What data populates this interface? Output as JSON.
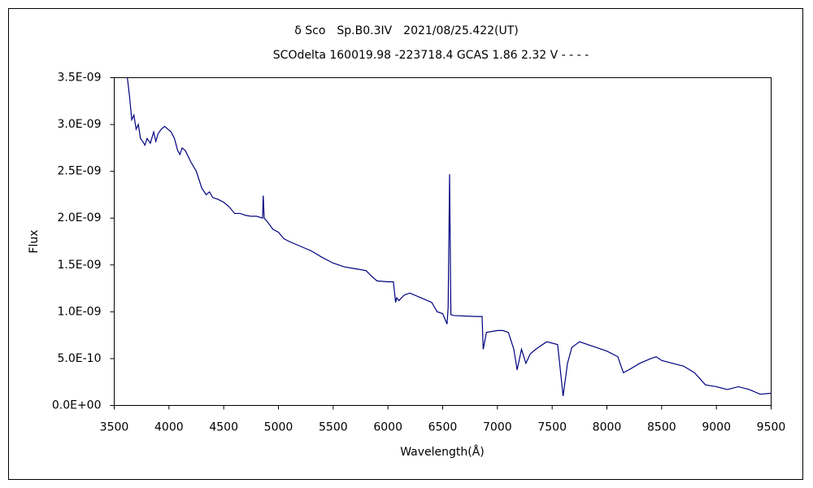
{
  "chart_data": {
    "type": "line",
    "title": "δ Sco　Sp.B0.3IV　2021/08/25.422(UT)",
    "subtitle": "SCOdelta 160019.98 -223718.4 GCAS 1.86 2.32 V - - - -",
    "x_label": "Wavelength(Å)",
    "y_label": "Flux",
    "xlim": [
      3500,
      9500
    ],
    "xticks": [
      3500,
      4000,
      4500,
      5000,
      5500,
      6000,
      6500,
      7000,
      7500,
      8000,
      8500,
      9000,
      9500
    ],
    "ylim": [
      0,
      3.5e-09
    ],
    "yticks": [
      {
        "value": 0,
        "label": "0.0E+00"
      },
      {
        "value": 5e-10,
        "label": "5.0E-10"
      },
      {
        "value": 1e-09,
        "label": "1.0E-09"
      },
      {
        "value": 1.5e-09,
        "label": "1.5E-09"
      },
      {
        "value": 2e-09,
        "label": "2.0E-09"
      },
      {
        "value": 2.5e-09,
        "label": "2.5E-09"
      },
      {
        "value": 3e-09,
        "label": "3.0E-09"
      },
      {
        "value": 3.5e-09,
        "label": "3.5E-09"
      }
    ],
    "grid": false,
    "series": [
      {
        "color": "#000080",
        "x": [
          3620,
          3640,
          3660,
          3680,
          3700,
          3720,
          3740,
          3760,
          3780,
          3800,
          3830,
          3860,
          3880,
          3900,
          3930,
          3960,
          3990,
          4020,
          4050,
          4080,
          4100,
          4120,
          4150,
          4200,
          4250,
          4300,
          4340,
          4370,
          4400,
          4450,
          4500,
          4550,
          4600,
          4650,
          4700,
          4750,
          4800,
          4855,
          4861,
          4870,
          4900,
          4950,
          5000,
          5050,
          5100,
          5200,
          5300,
          5400,
          5500,
          5600,
          5700,
          5800,
          5850,
          5900,
          6000,
          6050,
          6070,
          6080,
          6100,
          6150,
          6200,
          6300,
          6400,
          6450,
          6500,
          6540,
          6550,
          6563,
          6575,
          6600,
          6800,
          6860,
          6870,
          6900,
          7000,
          7050,
          7100,
          7150,
          7180,
          7220,
          7260,
          7300,
          7350,
          7450,
          7550,
          7600,
          7640,
          7680,
          7750,
          7900,
          8000,
          8100,
          8150,
          8200,
          8300,
          8400,
          8450,
          8500,
          8600,
          8700,
          8800,
          8900,
          9000,
          9100,
          9200,
          9300,
          9400,
          9500
        ],
        "values": [
          3.5e-09,
          3.3e-09,
          3.05e-09,
          3.1e-09,
          2.95e-09,
          3e-09,
          2.85e-09,
          2.82e-09,
          2.78e-09,
          2.85e-09,
          2.8e-09,
          2.92e-09,
          2.82e-09,
          2.9e-09,
          2.95e-09,
          2.98e-09,
          2.95e-09,
          2.92e-09,
          2.85e-09,
          2.72e-09,
          2.68e-09,
          2.75e-09,
          2.72e-09,
          2.6e-09,
          2.5e-09,
          2.32e-09,
          2.25e-09,
          2.28e-09,
          2.22e-09,
          2.2e-09,
          2.17e-09,
          2.12e-09,
          2.05e-09,
          2.05e-09,
          2.03e-09,
          2.02e-09,
          2.02e-09,
          2e-09,
          2.24e-09,
          2e-09,
          1.96e-09,
          1.88e-09,
          1.85e-09,
          1.78e-09,
          1.75e-09,
          1.7e-09,
          1.65e-09,
          1.58e-09,
          1.52e-09,
          1.48e-09,
          1.46e-09,
          1.44e-09,
          1.38e-09,
          1.33e-09,
          1.32e-09,
          1.32e-09,
          1.1e-09,
          1.15e-09,
          1.12e-09,
          1.18e-09,
          1.2e-09,
          1.15e-09,
          1.1e-09,
          1e-09,
          9.8e-10,
          8.7e-10,
          1.05e-09,
          2.47e-09,
          9.7e-10,
          9.6e-10,
          9.5e-10,
          9.5e-10,
          6e-10,
          7.8e-10,
          8e-10,
          8e-10,
          7.8e-10,
          6e-10,
          3.8e-10,
          6e-10,
          4.5e-10,
          5.5e-10,
          6e-10,
          6.8e-10,
          6.5e-10,
          1e-10,
          4.5e-10,
          6.2e-10,
          6.8e-10,
          6.2e-10,
          5.8e-10,
          5.2e-10,
          3.5e-10,
          3.8e-10,
          4.5e-10,
          5e-10,
          5.2e-10,
          4.8e-10,
          4.5e-10,
          4.2e-10,
          3.5e-10,
          2.2e-10,
          2e-10,
          1.7e-10,
          2e-10,
          1.7e-10,
          1.2e-10,
          1.3e-10
        ]
      }
    ]
  }
}
